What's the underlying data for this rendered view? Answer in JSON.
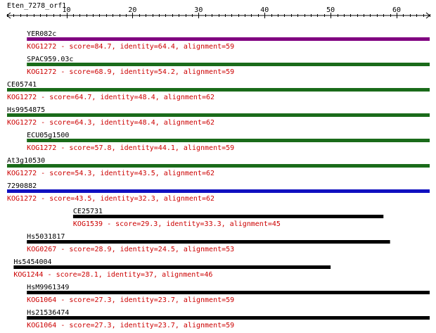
{
  "title": "Eten_7278_orf1",
  "axis": {
    "min": 1,
    "max": 65,
    "ticks": [
      10,
      20,
      30,
      40,
      50,
      60
    ]
  },
  "colors": {
    "axis": "#000000",
    "text": "#000000",
    "desc": "#cc0000"
  },
  "hits": [
    {
      "name": "YER082c",
      "start": 4,
      "end": 65,
      "color": "#800080",
      "desc": "KOG1272 - score=84.7, identity=64.4, alignment=59"
    },
    {
      "name": "SPAC959.03c",
      "start": 4,
      "end": 65,
      "color": "#1a6b1a",
      "desc": "KOG1272 - score=68.9, identity=54.2, alignment=59"
    },
    {
      "name": "CE05741",
      "start": 1,
      "end": 65,
      "color": "#1a6b1a",
      "desc": "KOG1272 - score=64.7, identity=48.4, alignment=62"
    },
    {
      "name": "Hs9954875",
      "start": 1,
      "end": 65,
      "color": "#1a6b1a",
      "desc": "KOG1272 - score=64.3, identity=48.4, alignment=62"
    },
    {
      "name": "ECU05g1500",
      "start": 4,
      "end": 65,
      "color": "#1a6b1a",
      "desc": "KOG1272 - score=57.8, identity=44.1, alignment=59"
    },
    {
      "name": "At3g10530",
      "start": 1,
      "end": 65,
      "color": "#1a6b1a",
      "desc": "KOG1272 - score=54.3, identity=43.5, alignment=62"
    },
    {
      "name": "7290882",
      "start": 1,
      "end": 65,
      "color": "#1010c0",
      "desc": "KOG1272 - score=43.5, identity=32.3, alignment=62"
    },
    {
      "name": "CE25731",
      "start": 11,
      "end": 58,
      "color": "#000000",
      "desc": "KOG1539 - score=29.3, identity=33.3, alignment=45"
    },
    {
      "name": "Hs5031817",
      "start": 4,
      "end": 59,
      "color": "#000000",
      "desc": "KOG0267 - score=28.9, identity=24.5, alignment=53"
    },
    {
      "name": "Hs5454004",
      "start": 2,
      "end": 50,
      "color": "#000000",
      "desc": "KOG1244 - score=28.1, identity=37, alignment=46"
    },
    {
      "name": "HsM9961349",
      "start": 4,
      "end": 65,
      "color": "#000000",
      "desc": "KOG1064 - score=27.3, identity=23.7, alignment=59"
    },
    {
      "name": "Hs21536474",
      "start": 4,
      "end": 65,
      "color": "#000000",
      "desc": "KOG1064 - score=27.3, identity=23.7, alignment=59"
    }
  ]
}
